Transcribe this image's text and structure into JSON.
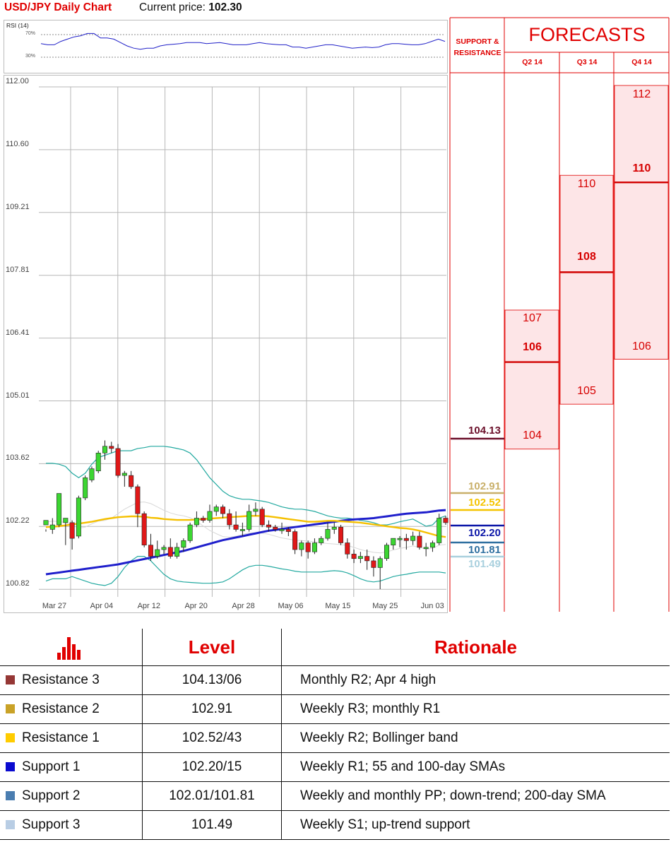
{
  "header": {
    "title": "USD/JPY Daily Chart",
    "price_label": "Current price:",
    "price_value": "102.30"
  },
  "rsi": {
    "label": "RSI (14)",
    "tick_70": "70%",
    "tick_30": "30%"
  },
  "forecast_panel": {
    "title": "FORECASTS",
    "sr_title_line1": "SUPPORT &",
    "sr_title_line2": "RESISTANCE",
    "quarters": [
      "Q2 14",
      "Q3 14",
      "Q4 14"
    ],
    "levels": [
      {
        "value": "104.13",
        "color": "#6b0f2a"
      },
      {
        "value": "102.91",
        "color": "#c9b06a"
      },
      {
        "value": "102.52",
        "color": "#f5c400"
      },
      {
        "value": "102.20",
        "color": "#0b16a8"
      },
      {
        "value": "101.81",
        "color": "#2e6fa0"
      },
      {
        "value": "101.49",
        "color": "#a9d0de"
      }
    ],
    "q2": {
      "high": "107",
      "mid": "106",
      "low": "104"
    },
    "q3": {
      "high": "110",
      "mid": "108",
      "low": "105"
    },
    "q4": {
      "high": "112",
      "mid": "110",
      "low": "106"
    }
  },
  "chart_data": {
    "type": "candlestick",
    "title": "USD/JPY Daily Chart",
    "y_ticks": [
      "112.00",
      "110.60",
      "109.21",
      "107.81",
      "106.41",
      "105.01",
      "103.62",
      "102.22",
      "100.82"
    ],
    "ylim": [
      100.82,
      112.0
    ],
    "x_ticks": [
      "Mar 27",
      "Apr 04",
      "Apr 12",
      "Apr 20",
      "Apr 28",
      "May 06",
      "May 15",
      "May 25",
      "Jun 03"
    ],
    "grid": true,
    "candles": [
      [
        102.25,
        102.35,
        102.15,
        102.1
      ],
      [
        102.15,
        102.25,
        102.4,
        102.05
      ],
      [
        102.25,
        102.95,
        102.6,
        102.2
      ],
      [
        102.3,
        102.4,
        102.35,
        101.8
      ],
      [
        102.3,
        101.95,
        102.35,
        101.7
      ],
      [
        102.0,
        102.85,
        102.9,
        101.95
      ],
      [
        102.85,
        103.3,
        103.35,
        102.8
      ],
      [
        103.25,
        103.5,
        103.55,
        103.2
      ],
      [
        103.45,
        103.85,
        103.9,
        103.4
      ],
      [
        103.85,
        104.0,
        104.13,
        103.7
      ],
      [
        104.0,
        103.95,
        104.1,
        103.85
      ],
      [
        103.95,
        103.35,
        104.05,
        103.3
      ],
      [
        103.35,
        103.4,
        103.45,
        103.1
      ],
      [
        103.35,
        103.1,
        103.45,
        103.05
      ],
      [
        103.1,
        102.5,
        103.15,
        102.2
      ],
      [
        102.5,
        101.8,
        102.55,
        101.75
      ],
      [
        101.8,
        101.55,
        102.05,
        101.45
      ],
      [
        101.55,
        101.7,
        101.9,
        101.5
      ],
      [
        101.7,
        101.75,
        101.8,
        101.6
      ],
      [
        101.75,
        101.55,
        101.95,
        101.5
      ],
      [
        101.55,
        101.75,
        101.85,
        101.5
      ],
      [
        101.75,
        101.9,
        101.95,
        101.65
      ],
      [
        101.9,
        102.25,
        102.3,
        101.85
      ],
      [
        102.25,
        102.4,
        102.55,
        102.2
      ],
      [
        102.4,
        102.35,
        102.45,
        102.3
      ],
      [
        102.35,
        102.55,
        102.7,
        102.3
      ],
      [
        102.55,
        102.65,
        102.7,
        102.45
      ],
      [
        102.65,
        102.5,
        102.7,
        102.4
      ],
      [
        102.5,
        102.25,
        102.6,
        102.15
      ],
      [
        102.25,
        102.15,
        102.55,
        102.1
      ],
      [
        102.15,
        102.15,
        102.3,
        102.0
      ],
      [
        102.15,
        102.55,
        102.7,
        102.1
      ],
      [
        102.55,
        102.6,
        102.75,
        102.45
      ],
      [
        102.6,
        102.25,
        102.65,
        102.2
      ],
      [
        102.25,
        102.2,
        102.35,
        102.1
      ],
      [
        102.2,
        102.15,
        102.25,
        102.1
      ],
      [
        102.15,
        102.15,
        102.3,
        102.05
      ],
      [
        102.15,
        102.1,
        102.2,
        102.0
      ],
      [
        102.1,
        101.7,
        102.15,
        101.6
      ],
      [
        101.7,
        101.85,
        101.9,
        101.55
      ],
      [
        101.85,
        101.65,
        101.9,
        101.5
      ],
      [
        101.65,
        101.85,
        101.95,
        101.6
      ],
      [
        101.85,
        101.95,
        102.0,
        101.8
      ],
      [
        101.95,
        102.15,
        102.3,
        101.9
      ],
      [
        102.15,
        102.2,
        102.3,
        102.05
      ],
      [
        102.2,
        101.85,
        102.25,
        101.8
      ],
      [
        101.85,
        101.6,
        101.95,
        101.5
      ],
      [
        101.6,
        101.5,
        101.7,
        101.4
      ],
      [
        101.5,
        101.55,
        101.65,
        101.4
      ],
      [
        101.55,
        101.45,
        101.7,
        101.25
      ],
      [
        101.45,
        101.3,
        101.55,
        101.1
      ],
      [
        101.3,
        101.5,
        101.55,
        100.82
      ],
      [
        101.5,
        101.8,
        101.85,
        101.45
      ],
      [
        101.8,
        101.95,
        101.95,
        101.7
      ],
      [
        101.95,
        101.95,
        102.0,
        101.75
      ],
      [
        101.95,
        101.9,
        102.05,
        101.7
      ],
      [
        101.9,
        102.0,
        102.1,
        101.8
      ],
      [
        102.0,
        101.75,
        102.1,
        101.7
      ],
      [
        101.75,
        101.75,
        101.85,
        101.55
      ],
      [
        101.75,
        101.85,
        101.9,
        101.65
      ],
      [
        101.85,
        102.4,
        102.5,
        101.8
      ],
      [
        102.4,
        102.3,
        102.45,
        102.25
      ]
    ],
    "upper_band": [
      103.62,
      103.62,
      103.6,
      103.55,
      103.4,
      103.3,
      103.4,
      103.6,
      103.75,
      103.8,
      103.85,
      103.9,
      103.9,
      103.9,
      103.95,
      103.97,
      104.0,
      104.0,
      104.0,
      103.98,
      103.95,
      103.92,
      103.85,
      103.7,
      103.5,
      103.3,
      103.15,
      103.0,
      102.9,
      102.85,
      102.82,
      102.82,
      102.8,
      102.78,
      102.75,
      102.7,
      102.65,
      102.62,
      102.6,
      102.6,
      102.58,
      102.55,
      102.5,
      102.45,
      102.42,
      102.4,
      102.4,
      102.38,
      102.35,
      102.33,
      102.3,
      102.25,
      102.25,
      102.28,
      102.32,
      102.35,
      102.38,
      102.3,
      102.22,
      102.25,
      102.4,
      102.45
    ],
    "lower_band": [
      101.0,
      101.05,
      101.05,
      101.05,
      101.1,
      101.05,
      101.0,
      100.95,
      100.92,
      100.9,
      100.95,
      101.1,
      101.3,
      101.45,
      101.55,
      101.55,
      101.45,
      101.3,
      101.15,
      101.05,
      101.0,
      100.98,
      100.97,
      100.96,
      100.95,
      100.95,
      100.96,
      100.98,
      101.05,
      101.15,
      101.25,
      101.32,
      101.35,
      101.35,
      101.33,
      101.3,
      101.27,
      101.25,
      101.22,
      101.2,
      101.2,
      101.2,
      101.2,
      101.22,
      101.23,
      101.22,
      101.18,
      101.12,
      101.05,
      101.0,
      100.98,
      101.0,
      101.05,
      101.1,
      101.13,
      101.15,
      101.18,
      101.2,
      101.2,
      101.2,
      101.2,
      101.18
    ],
    "sma_yellow": [
      102.2,
      102.21,
      102.22,
      102.24,
      102.26,
      102.28,
      102.3,
      102.32,
      102.35,
      102.38,
      102.4,
      102.42,
      102.43,
      102.44,
      102.44,
      102.43,
      102.41,
      102.4,
      102.38,
      102.37,
      102.36,
      102.36,
      102.36,
      102.37,
      102.38,
      102.39,
      102.4,
      102.41,
      102.42,
      102.43,
      102.44,
      102.45,
      102.45,
      102.45,
      102.44,
      102.42,
      102.4,
      102.38,
      102.36,
      102.34,
      102.32,
      102.32,
      102.33,
      102.34,
      102.34,
      102.33,
      102.32,
      102.31,
      102.3,
      102.28,
      102.26,
      102.24,
      102.22,
      102.2,
      102.18,
      102.17,
      102.15,
      102.12,
      102.08,
      102.04,
      102.0,
      101.98
    ],
    "sma_blue": [
      101.15,
      101.17,
      101.19,
      101.21,
      101.23,
      101.25,
      101.27,
      101.29,
      101.31,
      101.33,
      101.35,
      101.37,
      101.4,
      101.43,
      101.46,
      101.49,
      101.52,
      101.55,
      101.58,
      101.61,
      101.64,
      101.67,
      101.71,
      101.75,
      101.79,
      101.83,
      101.87,
      101.91,
      101.94,
      101.97,
      102.0,
      102.03,
      102.06,
      102.09,
      102.12,
      102.14,
      102.16,
      102.18,
      102.2,
      102.22,
      102.24,
      102.26,
      102.28,
      102.3,
      102.32,
      102.34,
      102.36,
      102.37,
      102.38,
      102.39,
      102.4,
      102.42,
      102.44,
      102.46,
      102.48,
      102.5,
      102.51,
      102.52,
      102.53,
      102.55,
      102.57,
      102.58
    ],
    "rsi_values": [
      54,
      52,
      52,
      58,
      62,
      66,
      68,
      72,
      72,
      64,
      64,
      62,
      56,
      50,
      46,
      44,
      46,
      46,
      50,
      52,
      53,
      54,
      56,
      56,
      56,
      54,
      55,
      56,
      54,
      52,
      52,
      52,
      54,
      56,
      54,
      53,
      52,
      52,
      48,
      48,
      46,
      48,
      50,
      52,
      52,
      50,
      48,
      46,
      47,
      48,
      47,
      48,
      52,
      54,
      54,
      53,
      52,
      52,
      54,
      58,
      62,
      58
    ]
  },
  "rationale_table": {
    "headers": {
      "level": "Level",
      "rationale": "Rationale"
    },
    "rows": [
      {
        "name": "Resistance 3",
        "level": "104.13/06",
        "rationale": "Monthly R2; Apr 4 high",
        "color": "#953735"
      },
      {
        "name": "Resistance 2",
        "level": "102.91",
        "rationale": "Weekly R3; monthly R1",
        "color": "#c9a227"
      },
      {
        "name": "Resistance 1",
        "level": "102.52/43",
        "rationale": "Weekly R2; Bollinger band",
        "color": "#ffcc00"
      },
      {
        "name": "Support 1",
        "level": "102.20/15",
        "rationale": "Weekly R1; 55 and 100-day SMAs",
        "color": "#0a0acf"
      },
      {
        "name": "Support 2",
        "level": "102.01/101.81",
        "rationale": "Weekly and monthly PP; down-trend; 200-day SMA",
        "color": "#4a7db0"
      },
      {
        "name": "Support 3",
        "level": "101.49",
        "rationale": "Weekly S1; up-trend support",
        "color": "#b8cde4"
      }
    ]
  }
}
